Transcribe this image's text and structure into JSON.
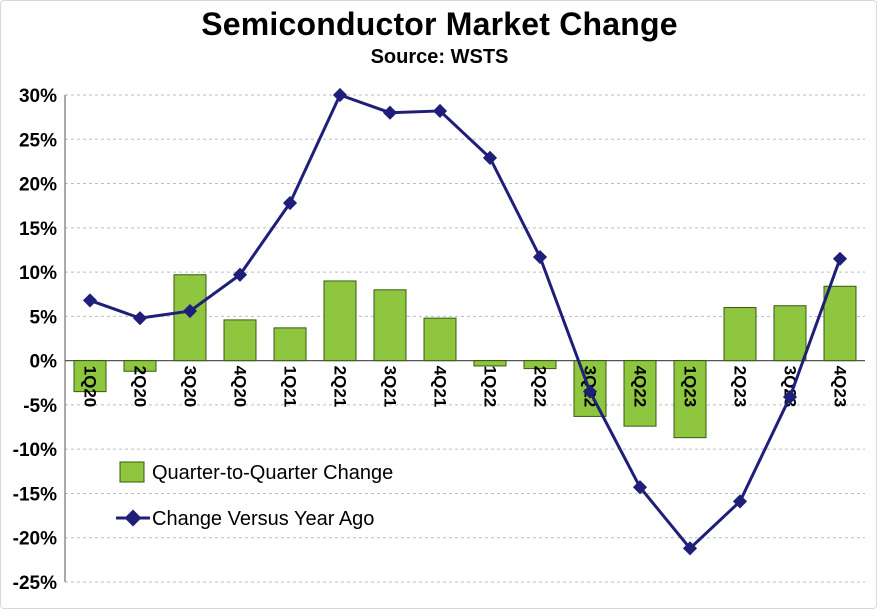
{
  "chart_data": {
    "type": "bar",
    "title": "Semiconductor Market Change",
    "subtitle": "Source: WSTS",
    "categories": [
      "1Q20",
      "2Q20",
      "3Q20",
      "4Q20",
      "1Q21",
      "2Q21",
      "3Q21",
      "4Q21",
      "1Q22",
      "2Q22",
      "3Q22",
      "4Q22",
      "1Q23",
      "2Q23",
      "3Q23",
      "4Q23"
    ],
    "series": [
      {
        "name": "Quarter-to-Quarter Change",
        "type": "bar",
        "color": "#8ec63f",
        "values": [
          -3.5,
          -1.2,
          9.7,
          4.6,
          3.7,
          9.0,
          8.0,
          4.8,
          -0.6,
          -0.9,
          -6.3,
          -7.4,
          -8.7,
          6.0,
          6.2,
          8.4
        ]
      },
      {
        "name": "Change Versus Year Ago",
        "type": "line",
        "color": "#1f1f7a",
        "values": [
          6.8,
          4.8,
          5.6,
          9.7,
          17.8,
          30.0,
          28.0,
          28.2,
          22.9,
          11.7,
          -3.5,
          -14.3,
          -21.2,
          -15.9,
          -4.1,
          11.5
        ]
      }
    ],
    "ylim": [
      -25,
      30
    ],
    "yticks": [
      "30%",
      "25%",
      "20%",
      "15%",
      "10%",
      "5%",
      "0%",
      "-5%",
      "-10%",
      "-15%",
      "-20%",
      "-25%"
    ],
    "ytick_values": [
      30,
      25,
      20,
      15,
      10,
      5,
      0,
      -5,
      -10,
      -15,
      -20,
      -25
    ],
    "grid": true,
    "legend_placement": "lower-left"
  }
}
